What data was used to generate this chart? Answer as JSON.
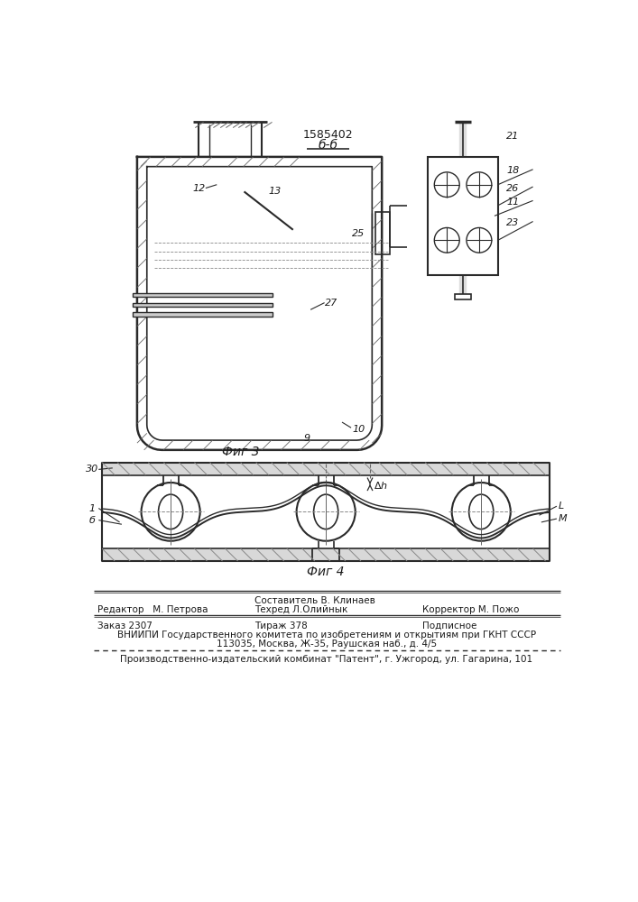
{
  "patent_number": "1585402",
  "section_label": "б-б",
  "fig3_label": "Фиг 3",
  "fig4_label": "Фиг 4",
  "footer": {
    "editor_label": "Редактор",
    "editor_name": "М. Петрова",
    "composer_label": "Составитель В. Клинаев",
    "techred_label": "Техред Л.Олийнык",
    "corrector_label": "Корректор М. Пожо",
    "order_label": "Заказ 2307",
    "tirazh_label": "Тираж 378",
    "podpisnoe_label": "Подписное",
    "vniip_line1": "ВНИИПИ Государственного комитета по изобретениям и открытиям при ГКНТ СССР",
    "vniip_line2": "113035, Москва, Ж-35, Раушская наб., д. 4/5",
    "patent_line": "Производственно-издательский комбинат \"Патент\", г. Ужгород, ул. Гагарина, 101"
  },
  "bg_color": "#ffffff",
  "line_color": "#2a2a2a",
  "text_color": "#1a1a1a"
}
